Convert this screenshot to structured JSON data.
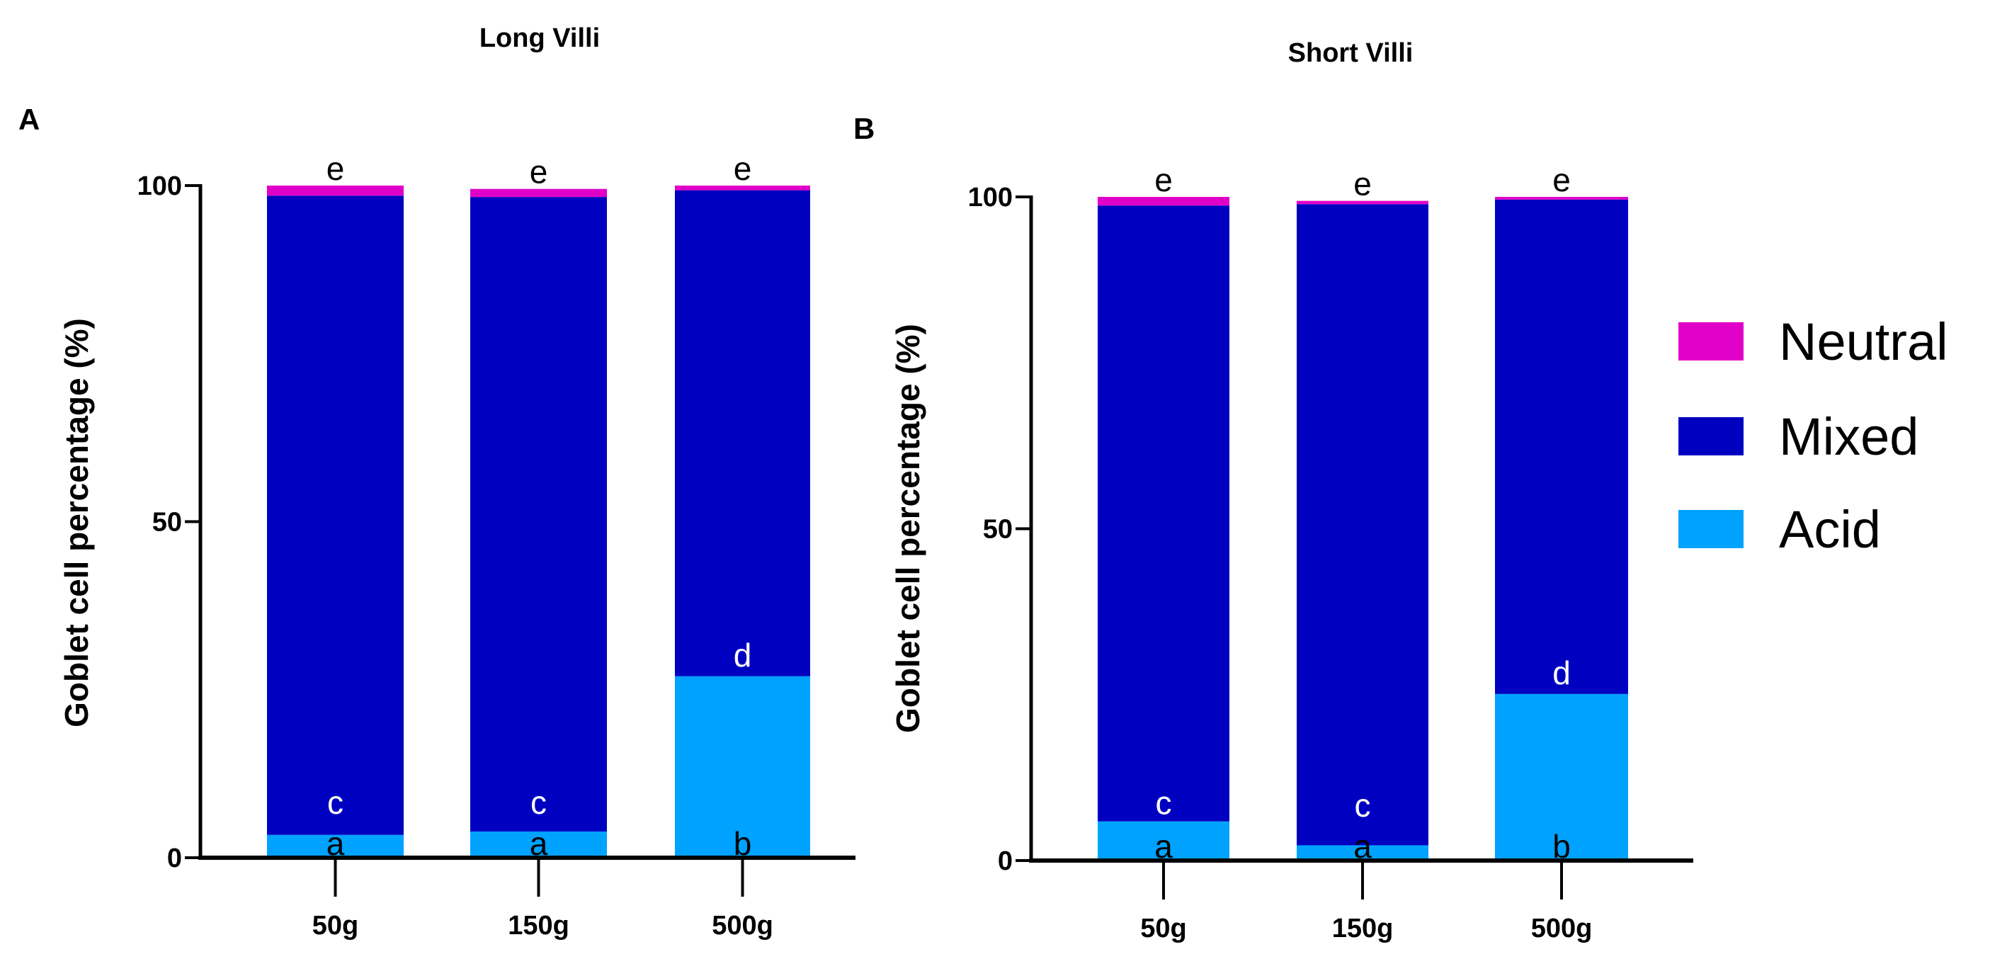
{
  "chart_data": [
    {
      "type": "bar",
      "stacked": true,
      "panel_label": "A",
      "title": "Long Villi",
      "xlabel": "",
      "ylabel": "Goblet cell percentage (%)",
      "ylim": [
        0,
        100
      ],
      "yticks": [
        "0",
        "50",
        "100"
      ],
      "categories": [
        "50g",
        "150g",
        "500g"
      ],
      "series": [
        {
          "name": "Acid",
          "values": [
            3.4,
            3.9,
            27.0
          ]
        },
        {
          "name": "Mixed",
          "values": [
            95.1,
            94.4,
            72.3
          ]
        },
        {
          "name": "Neutral",
          "values": [
            1.5,
            1.2,
            0.7
          ]
        }
      ],
      "annotations": {
        "top": [
          "e",
          "e",
          "e"
        ],
        "mixed": [
          "c",
          "c",
          "d"
        ],
        "acid": [
          "a",
          "a",
          "b"
        ]
      }
    },
    {
      "type": "bar",
      "stacked": true,
      "panel_label": "B",
      "title": "Short Villi",
      "xlabel": "",
      "ylabel": "Goblet cell percentage (%)",
      "ylim": [
        0,
        100
      ],
      "yticks": [
        "0",
        "50",
        "100"
      ],
      "categories": [
        "50g",
        "150g",
        "500g"
      ],
      "series": [
        {
          "name": "Acid",
          "values": [
            5.9,
            2.3,
            25.1
          ]
        },
        {
          "name": "Mixed",
          "values": [
            92.8,
            96.6,
            74.5
          ]
        },
        {
          "name": "Neutral",
          "values": [
            1.3,
            0.5,
            0.4
          ]
        }
      ],
      "annotations": {
        "top": [
          "e",
          "e",
          "e"
        ],
        "mixed": [
          "c",
          "c",
          "d"
        ],
        "acid": [
          "a",
          "a",
          "b"
        ]
      }
    }
  ],
  "legend": {
    "position": "right",
    "items": [
      {
        "label": "Neutral",
        "color": "#E000C8"
      },
      {
        "label": "Mixed",
        "color": "#0000C0"
      },
      {
        "label": "Acid",
        "color": "#00A2FF"
      }
    ]
  },
  "colors": {
    "Acid": "#00A2FF",
    "Mixed": "#0000C0",
    "Neutral": "#E000C8"
  }
}
